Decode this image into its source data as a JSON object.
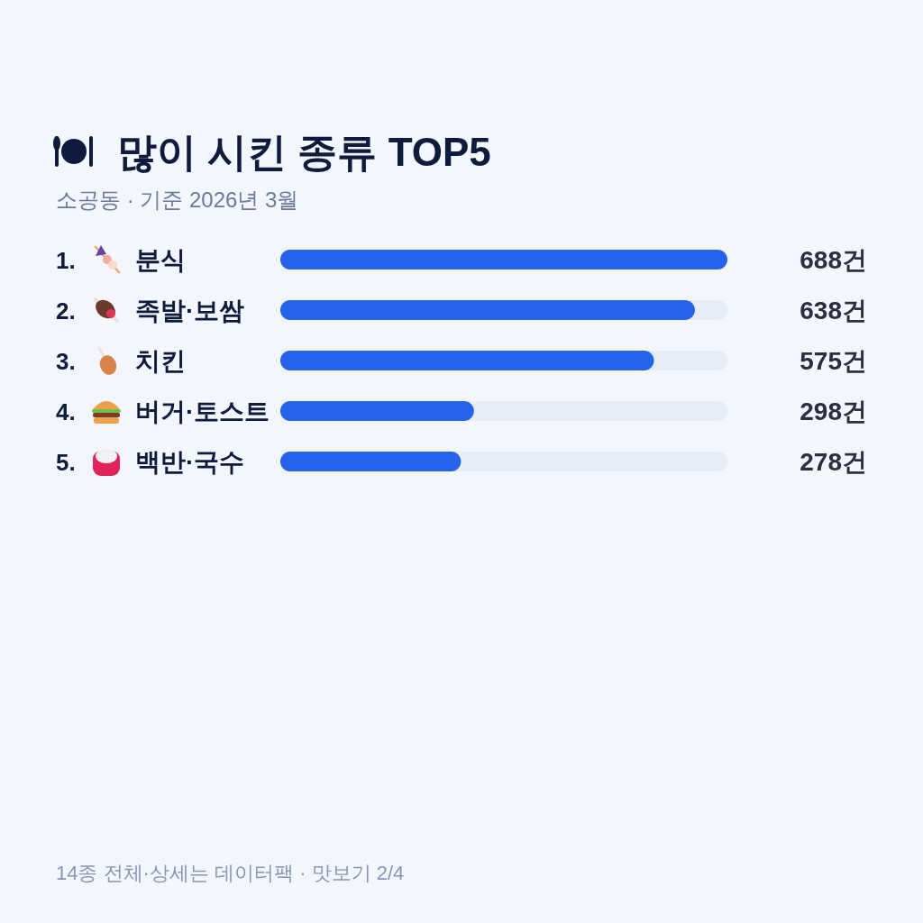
{
  "chart_data": {
    "type": "bar",
    "orientation": "horizontal",
    "title": "많이 시킨 종류 TOP5",
    "subtitle": "소공동 · 기준 2026년 3월",
    "categories": [
      "1. 분식",
      "2. 족발·보쌈",
      "3. 치킨",
      "4. 버거·토스트",
      "5. 백반·국수"
    ],
    "values": [
      688,
      638,
      575,
      298,
      278
    ],
    "value_labels": [
      "688건",
      "638건",
      "575건",
      "298건",
      "278건"
    ],
    "color": "#2563eb",
    "tick_labels": "y",
    "annotations": [
      "14종 전체·상세는 데이터팩 · 맛보기 2/4"
    ]
  }
}
